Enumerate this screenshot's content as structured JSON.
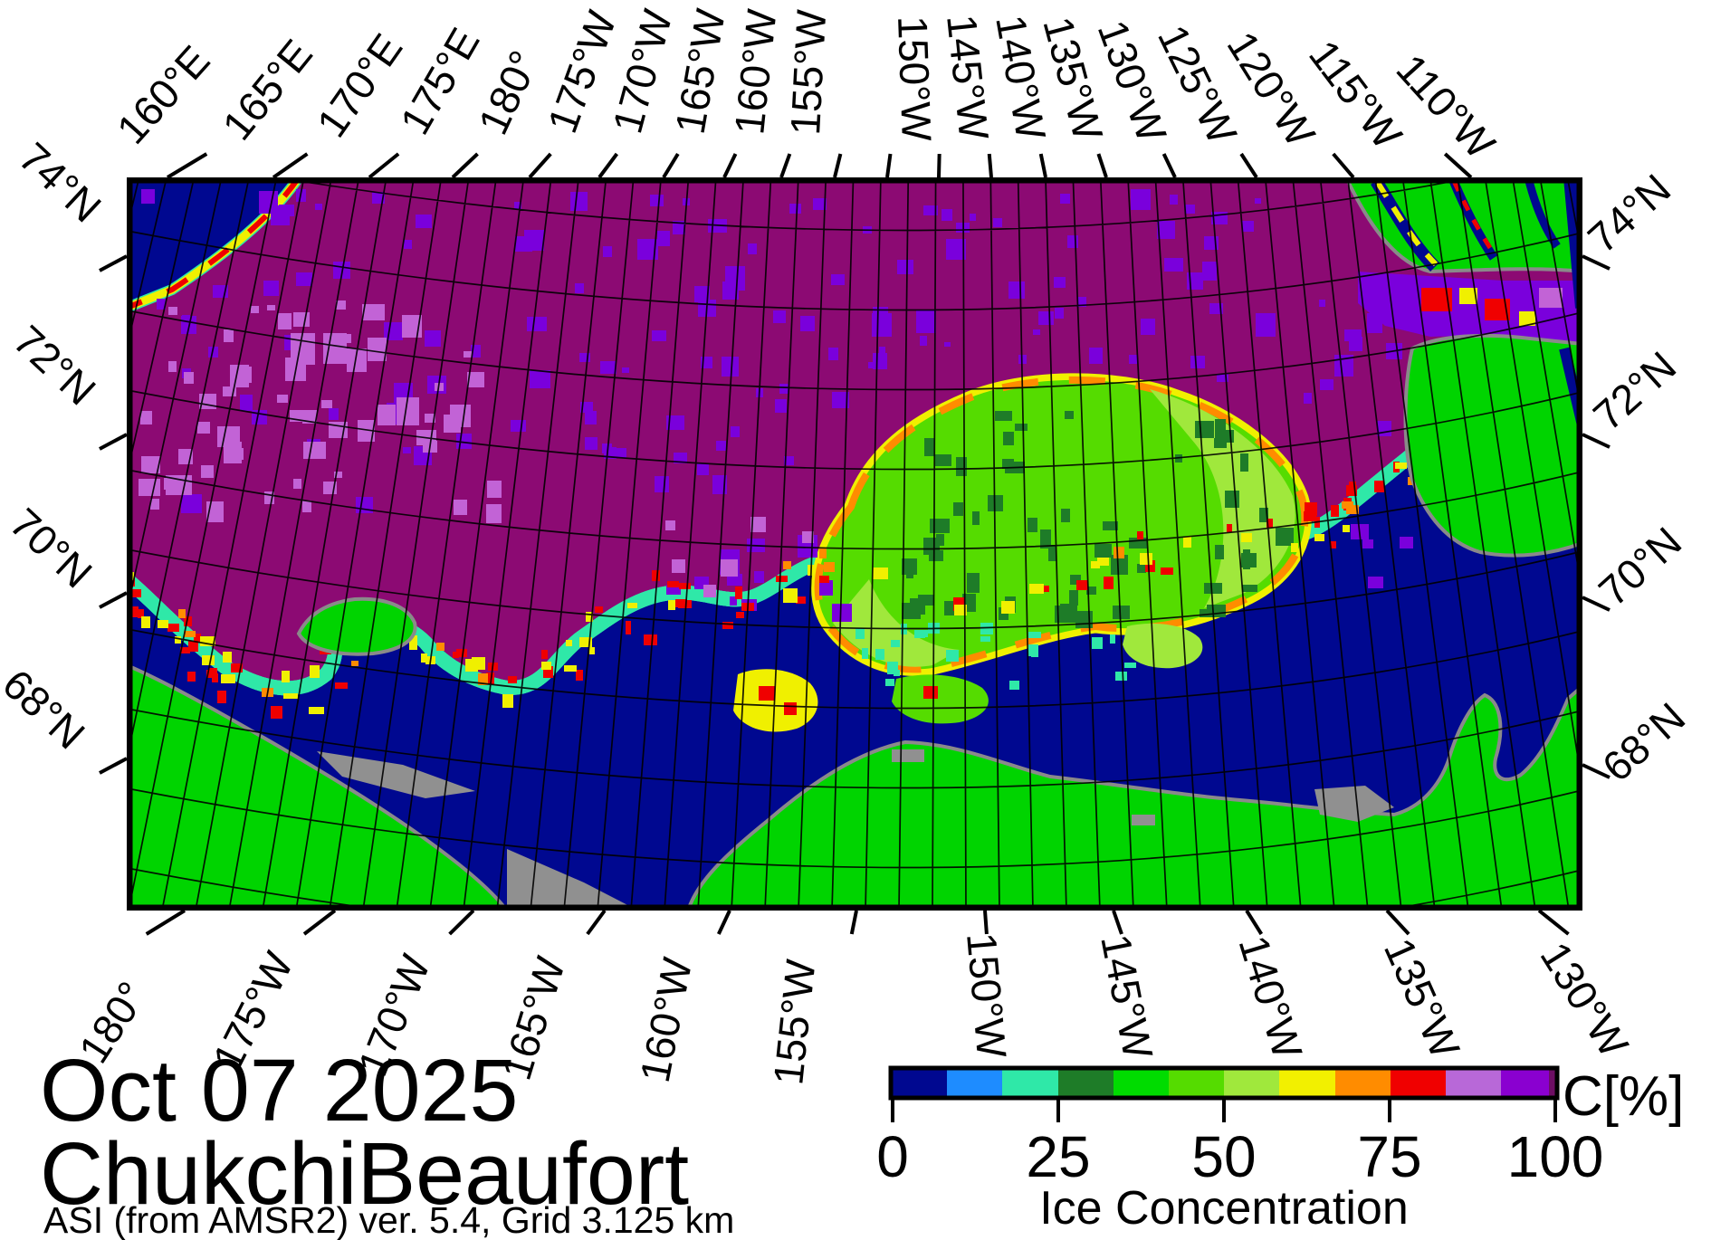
{
  "figure": {
    "date": "Oct 07 2025",
    "region": "ChukchiBeaufort",
    "source_line": "ASI (from AMSR2) ver. 5.4,  Grid 3.125 km"
  },
  "axes": {
    "top": [
      "160°E",
      "165°E",
      "170°E",
      "175°E",
      "180°",
      "175°W",
      "170°W",
      "165°W",
      "160°W",
      "155°W",
      "150°W",
      "145°W",
      "140°W",
      "135°W",
      "130°W",
      "125°W",
      "120°W",
      "115°W",
      "110°W"
    ],
    "bottom": [
      "180°",
      "175°W",
      "170°W",
      "165°W",
      "160°W",
      "155°W",
      "150°W",
      "145°W",
      "140°W",
      "135°W",
      "130°W"
    ],
    "left": [
      "74°N",
      "72°N",
      "70°N",
      "68°N"
    ],
    "right": [
      "74°N",
      "72°N",
      "70°N",
      "68°N"
    ]
  },
  "colorbar": {
    "ticks": [
      "0",
      "25",
      "50",
      "75",
      "100"
    ],
    "range": [
      0,
      100
    ],
    "axis_label": "Ice Concentration",
    "unit_label": "C[%]",
    "colors": [
      "#000890",
      "#1E8CFF",
      "#2FE8A8",
      "#1E7C28",
      "#00DC00",
      "#55DC00",
      "#A0E83C",
      "#F2F000",
      "#FF8C00",
      "#F00000",
      "#B868D8",
      "#8A00D0"
    ],
    "end_color": "#6E0E64"
  },
  "map": {
    "palette": {
      "ocean": "#000890",
      "land": "#00D400",
      "no_data": "#909090",
      "coast": "#8A8A8A",
      "pack_ice": "#8C0A73",
      "ice_purple": "#7A00DC",
      "ice_orchid": "#C263D6",
      "ice_red": "#F00000",
      "ice_orange": "#FF8C00",
      "ice_yellow": "#F0F000",
      "ice_yellowgreen": "#A0E83C",
      "ice_green": "#55DC00",
      "ice_darkgreen": "#1E7C28",
      "ice_spring": "#2FE8A8",
      "ice_blue": "#1E8CFF",
      "graticule": "#000000"
    }
  }
}
